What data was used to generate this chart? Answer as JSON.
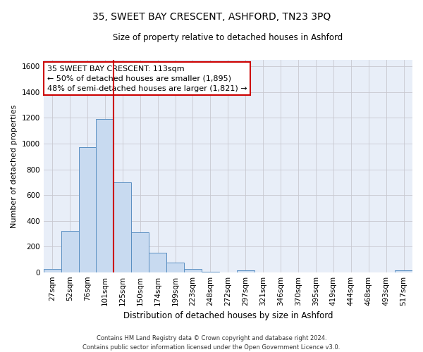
{
  "title": "35, SWEET BAY CRESCENT, ASHFORD, TN23 3PQ",
  "subtitle": "Size of property relative to detached houses in Ashford",
  "xlabel": "Distribution of detached houses by size in Ashford",
  "ylabel": "Number of detached properties",
  "bin_labels": [
    "27sqm",
    "52sqm",
    "76sqm",
    "101sqm",
    "125sqm",
    "150sqm",
    "174sqm",
    "199sqm",
    "223sqm",
    "248sqm",
    "272sqm",
    "297sqm",
    "321sqm",
    "346sqm",
    "370sqm",
    "395sqm",
    "419sqm",
    "444sqm",
    "468sqm",
    "493sqm",
    "517sqm"
  ],
  "bin_values": [
    25,
    320,
    970,
    1190,
    700,
    310,
    150,
    75,
    25,
    5,
    0,
    15,
    0,
    0,
    0,
    0,
    0,
    0,
    0,
    0,
    15
  ],
  "bar_color": "#c8daf0",
  "bar_edge_color": "#5a8fc2",
  "vline_color": "#cc0000",
  "vline_pos": 3.5,
  "ylim": [
    0,
    1650
  ],
  "yticks": [
    0,
    200,
    400,
    600,
    800,
    1000,
    1200,
    1400,
    1600
  ],
  "annotation_title": "35 SWEET BAY CRESCENT: 113sqm",
  "annotation_line1": "← 50% of detached houses are smaller (1,895)",
  "annotation_line2": "48% of semi-detached houses are larger (1,821) →",
  "annotation_box_color": "#ffffff",
  "annotation_box_edge": "#cc0000",
  "footer1": "Contains HM Land Registry data © Crown copyright and database right 2024.",
  "footer2": "Contains public sector information licensed under the Open Government Licence v3.0.",
  "background_color": "#ffffff",
  "plot_bg_color": "#e8eef8",
  "grid_color": "#c8c8d0",
  "fig_width": 6.0,
  "fig_height": 5.0,
  "title_fontsize": 10,
  "subtitle_fontsize": 8.5,
  "xlabel_fontsize": 8.5,
  "ylabel_fontsize": 8,
  "tick_fontsize": 7.5,
  "annot_fontsize": 8,
  "footer_fontsize": 6
}
